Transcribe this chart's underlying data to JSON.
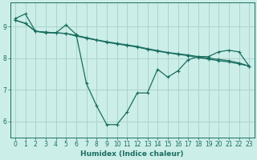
{
  "xlabel": "Humidex (Indice chaleur)",
  "bg_color": "#cceee8",
  "grid_color": "#aad4cc",
  "line_color": "#1a6e60",
  "x_values": [
    0,
    1,
    2,
    3,
    4,
    5,
    6,
    7,
    8,
    9,
    10,
    11,
    12,
    13,
    14,
    15,
    16,
    17,
    18,
    19,
    20,
    21,
    22,
    23
  ],
  "line1_y": [
    9.25,
    9.4,
    8.85,
    8.8,
    8.8,
    9.05,
    8.75,
    7.2,
    6.5,
    5.9,
    5.9,
    6.3,
    6.9,
    6.9,
    7.65,
    7.4,
    7.6,
    7.95,
    8.05,
    8.05,
    8.2,
    8.25,
    8.2,
    7.75
  ],
  "line2_y": [
    9.2,
    9.1,
    8.85,
    8.82,
    8.8,
    8.78,
    8.7,
    8.63,
    8.57,
    8.5,
    8.45,
    8.4,
    8.35,
    8.28,
    8.22,
    8.17,
    8.12,
    8.08,
    8.02,
    7.97,
    7.92,
    7.88,
    7.82,
    7.75
  ],
  "line3_y": [
    9.2,
    9.1,
    8.85,
    8.82,
    8.8,
    8.78,
    8.72,
    8.65,
    8.58,
    8.52,
    8.47,
    8.42,
    8.37,
    8.3,
    8.24,
    8.18,
    8.14,
    8.1,
    8.05,
    8.0,
    7.96,
    7.92,
    7.85,
    7.75
  ],
  "ylim": [
    5.5,
    9.75
  ],
  "xlim": [
    -0.5,
    23.5
  ],
  "yticks": [
    6,
    7,
    8,
    9
  ],
  "xticks": [
    0,
    1,
    2,
    3,
    4,
    5,
    6,
    7,
    8,
    9,
    10,
    11,
    12,
    13,
    14,
    15,
    16,
    17,
    18,
    19,
    20,
    21,
    22,
    23
  ]
}
